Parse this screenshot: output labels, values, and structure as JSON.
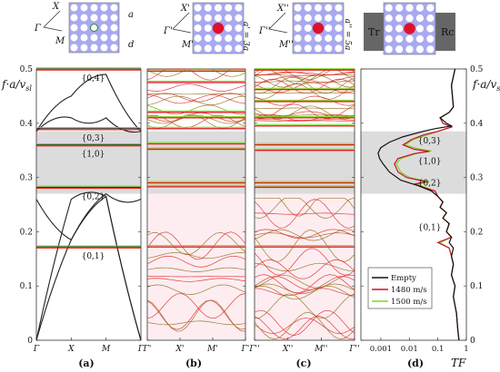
{
  "colors": {
    "black": "#111111",
    "red": "#e02020",
    "green": "#7fd81c",
    "gap": "#dcdcdc",
    "lattice": "#a9a9f0",
    "rod": "#ffffff",
    "defect": "#e0102a",
    "pink": "#fbd6e0",
    "electrode": "#666666"
  },
  "y_axis": {
    "left_label": "f·a/v",
    "left_label_sub": "sl",
    "right_label": "f·a/v",
    "right_label_sub": "sl",
    "ticks": [
      "0",
      "0.1",
      "0.2",
      "0.3",
      "0.4",
      "0.5"
    ]
  },
  "gap": {
    "ymin": 0.27,
    "ymax": 0.385
  },
  "lattice_labels": {
    "a_X": "X",
    "a_G": "Γ",
    "a_M": "M",
    "a_a": "a",
    "a_d": "d",
    "b_X": "X'",
    "b_G": "Γ'",
    "b_M": "M'",
    "b_a": "a' = 3a",
    "c_X": "X''",
    "c_G": "Γ''",
    "c_M": "M''",
    "c_a": "a'' = 5a",
    "d_Tr": "Tr",
    "d_Rc": "Rc"
  },
  "panels": [
    {
      "label": "(a)",
      "ticks": [
        "Γ",
        "X",
        "M",
        "Γ"
      ]
    },
    {
      "label": "(b)",
      "ticks": [
        "Γ'",
        "X'",
        "M'",
        "Γ'"
      ]
    },
    {
      "label": "(c)",
      "ticks": [
        "Γ''",
        "X''",
        "M''",
        "Γ''"
      ]
    },
    {
      "label": "(d)",
      "ticks": [
        "0.001",
        "0.01",
        "0.1",
        "1"
      ],
      "xlabel": "TF"
    }
  ],
  "chart_data": [
    {
      "type": "line",
      "panel": "(a)",
      "x_ticks": [
        "Γ",
        "X",
        "M",
        "Γ"
      ],
      "ylim": [
        0,
        0.5
      ],
      "series": [
        {
          "name": "Empty",
          "values": [
            [
              0,
              0
            ],
            [
              1,
              0.185
            ],
            [
              2,
              0.265
            ],
            [
              3,
              0
            ]
          ]
        },
        {
          "name": "Empty",
          "values": [
            [
              0,
              0
            ],
            [
              1,
              0.26
            ],
            [
              2,
              0.265
            ],
            [
              3,
              0
            ]
          ]
        },
        {
          "name": "Empty",
          "values": [
            [
              0,
              0.26
            ],
            [
              1,
              0.185
            ],
            [
              2,
              0.27
            ],
            [
              3,
              0.26
            ]
          ]
        },
        {
          "name": "Empty",
          "values": [
            [
              0,
              0.385
            ],
            [
              1,
              0.41
            ],
            [
              2,
              0.41
            ],
            [
              3,
              0.385
            ]
          ]
        },
        {
          "name": "Empty",
          "values": [
            [
              0,
              0.385
            ],
            [
              1,
              0.45
            ],
            [
              2,
              0.49
            ],
            [
              3,
              0.385
            ]
          ]
        }
      ],
      "flat_bands": [
        {
          "label": "{0,4}",
          "y": 0.5
        },
        {
          "label": "{0,3}",
          "y": 0.39
        },
        {
          "label": "{1,0}",
          "y": 0.36
        },
        {
          "label": "{0,2}",
          "y": 0.282
        },
        {
          "label": "{0,1}",
          "y": 0.172
        }
      ]
    },
    {
      "type": "line",
      "panel": "(b)",
      "x_ticks": [
        "Γ'",
        "X'",
        "M'",
        "Γ'"
      ],
      "ylim": [
        0,
        0.5
      ],
      "flat_bands": [
        0.496,
        0.475,
        0.42,
        0.41,
        0.39,
        0.362,
        0.352,
        0.29,
        0.283,
        0.172
      ]
    },
    {
      "type": "line",
      "panel": "(c)",
      "x_ticks": [
        "Γ''",
        "X''",
        "M''",
        "Γ''"
      ],
      "ylim": [
        0,
        0.5
      ],
      "flat_bands": [
        0.498,
        0.462,
        0.44,
        0.41,
        0.395,
        0.36,
        0.35,
        0.29,
        0.282,
        0.172
      ]
    },
    {
      "type": "line",
      "panel": "(d)",
      "xlabel": "TF",
      "x_scale": "log",
      "xlim": [
        0.0002,
        1
      ],
      "ylim": [
        0,
        0.5
      ],
      "legend": {
        "position": "bottom-left",
        "entries": [
          "Empty",
          "1480 m/s",
          "1500 m/s"
        ]
      },
      "annotations": [
        {
          "label": "{0,3}",
          "y": 0.368
        },
        {
          "label": "{1,0}",
          "y": 0.33
        },
        {
          "label": "{0,2}",
          "y": 0.29
        },
        {
          "label": "{0,1}",
          "y": 0.208
        }
      ],
      "series": [
        {
          "name": "Empty",
          "points": [
            [
              0.4,
              0.5
            ],
            [
              0.3,
              0.47
            ],
            [
              0.35,
              0.43
            ],
            [
              0.25,
              0.42
            ],
            [
              0.12,
              0.41
            ],
            [
              0.2,
              0.4
            ],
            [
              0.3,
              0.395
            ],
            [
              0.08,
              0.39
            ],
            [
              0.03,
              0.385
            ],
            [
              0.006,
              0.375
            ],
            [
              0.002,
              0.365
            ],
            [
              0.001,
              0.355
            ],
            [
              0.0008,
              0.345
            ],
            [
              0.0009,
              0.335
            ],
            [
              0.0012,
              0.325
            ],
            [
              0.002,
              0.31
            ],
            [
              0.005,
              0.295
            ],
            [
              0.02,
              0.285
            ],
            [
              0.06,
              0.275
            ],
            [
              0.1,
              0.265
            ],
            [
              0.15,
              0.255
            ],
            [
              0.12,
              0.245
            ],
            [
              0.2,
              0.235
            ],
            [
              0.15,
              0.225
            ],
            [
              0.25,
              0.215
            ],
            [
              0.2,
              0.2
            ],
            [
              0.3,
              0.19
            ],
            [
              0.25,
              0.18
            ],
            [
              0.35,
              0.17
            ],
            [
              0.3,
              0.155
            ],
            [
              0.35,
              0.14
            ],
            [
              0.3,
              0.12
            ],
            [
              0.4,
              0.1
            ],
            [
              0.35,
              0.08
            ],
            [
              0.45,
              0.05
            ],
            [
              0.5,
              0.02
            ],
            [
              0.55,
              0
            ]
          ]
        },
        {
          "name": "1480 m/s",
          "points": [
            [
              0.4,
              0.5
            ],
            [
              0.3,
              0.47
            ],
            [
              0.35,
              0.43
            ],
            [
              0.25,
              0.42
            ],
            [
              0.12,
              0.41
            ],
            [
              0.15,
              0.4
            ],
            [
              0.3,
              0.393
            ],
            [
              0.1,
              0.385
            ],
            [
              0.03,
              0.378
            ],
            [
              0.012,
              0.37
            ],
            [
              0.006,
              0.36
            ],
            [
              0.015,
              0.352
            ],
            [
              0.05,
              0.348
            ],
            [
              0.015,
              0.344
            ],
            [
              0.004,
              0.335
            ],
            [
              0.003,
              0.325
            ],
            [
              0.004,
              0.31
            ],
            [
              0.008,
              0.3
            ],
            [
              0.04,
              0.292
            ],
            [
              0.015,
              0.288
            ],
            [
              0.03,
              0.282
            ],
            [
              0.08,
              0.275
            ],
            [
              0.1,
              0.265
            ],
            [
              0.15,
              0.255
            ],
            [
              0.12,
              0.245
            ],
            [
              0.2,
              0.235
            ],
            [
              0.15,
              0.225
            ],
            [
              0.25,
              0.215
            ],
            [
              0.2,
              0.2
            ],
            [
              0.3,
              0.19
            ],
            [
              0.1,
              0.18
            ],
            [
              0.25,
              0.17
            ],
            [
              0.3,
              0.155
            ],
            [
              0.35,
              0.14
            ],
            [
              0.3,
              0.12
            ],
            [
              0.4,
              0.1
            ],
            [
              0.35,
              0.08
            ],
            [
              0.45,
              0.05
            ],
            [
              0.5,
              0.02
            ],
            [
              0.55,
              0
            ]
          ]
        },
        {
          "name": "1500 m/s",
          "points": [
            [
              0.4,
              0.5
            ],
            [
              0.3,
              0.47
            ],
            [
              0.35,
              0.43
            ],
            [
              0.25,
              0.42
            ],
            [
              0.12,
              0.41
            ],
            [
              0.15,
              0.4
            ],
            [
              0.3,
              0.393
            ],
            [
              0.1,
              0.385
            ],
            [
              0.04,
              0.378
            ],
            [
              0.014,
              0.37
            ],
            [
              0.007,
              0.36
            ],
            [
              0.02,
              0.353
            ],
            [
              0.06,
              0.349
            ],
            [
              0.02,
              0.345
            ],
            [
              0.005,
              0.335
            ],
            [
              0.0035,
              0.325
            ],
            [
              0.005,
              0.31
            ],
            [
              0.01,
              0.3
            ],
            [
              0.05,
              0.292
            ],
            [
              0.018,
              0.288
            ],
            [
              0.035,
              0.282
            ],
            [
              0.08,
              0.275
            ],
            [
              0.1,
              0.265
            ],
            [
              0.15,
              0.255
            ],
            [
              0.12,
              0.245
            ],
            [
              0.2,
              0.235
            ],
            [
              0.15,
              0.225
            ],
            [
              0.25,
              0.215
            ],
            [
              0.2,
              0.2
            ],
            [
              0.3,
              0.19
            ],
            [
              0.12,
              0.18
            ],
            [
              0.25,
              0.17
            ],
            [
              0.3,
              0.155
            ],
            [
              0.35,
              0.14
            ],
            [
              0.3,
              0.12
            ],
            [
              0.4,
              0.1
            ],
            [
              0.35,
              0.08
            ],
            [
              0.45,
              0.05
            ],
            [
              0.5,
              0.02
            ],
            [
              0.55,
              0
            ]
          ]
        }
      ]
    }
  ]
}
